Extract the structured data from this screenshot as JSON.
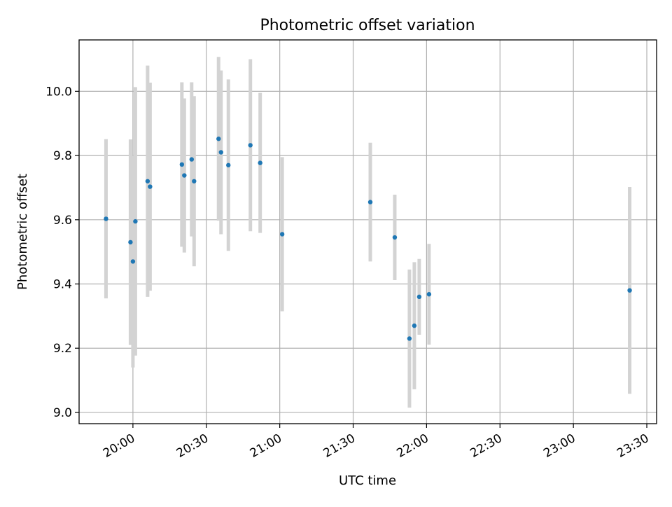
{
  "chart_data": {
    "type": "scatter",
    "title": "Photometric offset variation",
    "xlabel": "UTC time",
    "ylabel": "Photometric offset",
    "x_is_time": true,
    "xlim": [
      "19:38",
      "23:34"
    ],
    "ylim": [
      8.965,
      10.16
    ],
    "x_ticks": [
      "20:00",
      "20:30",
      "21:00",
      "21:30",
      "22:00",
      "22:30",
      "23:00",
      "23:30"
    ],
    "y_ticks": [
      9.0,
      9.2,
      9.4,
      9.6,
      9.8,
      10.0
    ],
    "y_tick_labels": [
      "9.0",
      "9.2",
      "9.4",
      "9.6",
      "9.8",
      "10.0"
    ],
    "grid": true,
    "errorbar_color": "#d3d3d3",
    "point_color": "#1f77b4",
    "series": [
      {
        "points": [
          {
            "x": "19:49",
            "y": 9.603,
            "err": 0.248
          },
          {
            "x": "19:59",
            "y": 9.53,
            "err": 0.32
          },
          {
            "x": "20:00",
            "y": 9.47,
            "err": 0.33
          },
          {
            "x": "20:01",
            "y": 9.595,
            "err": 0.418
          },
          {
            "x": "20:06",
            "y": 9.72,
            "err": 0.36
          },
          {
            "x": "20:07",
            "y": 9.703,
            "err": 0.324
          },
          {
            "x": "20:20",
            "y": 9.772,
            "err": 0.256
          },
          {
            "x": "20:21",
            "y": 9.738,
            "err": 0.24
          },
          {
            "x": "20:24",
            "y": 9.788,
            "err": 0.24
          },
          {
            "x": "20:25",
            "y": 9.72,
            "err": 0.265
          },
          {
            "x": "20:35",
            "y": 9.852,
            "err": 0.255
          },
          {
            "x": "20:36",
            "y": 9.81,
            "err": 0.255
          },
          {
            "x": "20:39",
            "y": 9.77,
            "err": 0.267
          },
          {
            "x": "20:48",
            "y": 9.832,
            "err": 0.268
          },
          {
            "x": "20:52",
            "y": 9.777,
            "err": 0.218
          },
          {
            "x": "21:01",
            "y": 9.555,
            "err": 0.24
          },
          {
            "x": "21:37",
            "y": 9.655,
            "err": 0.185
          },
          {
            "x": "21:47",
            "y": 9.545,
            "err": 0.133
          },
          {
            "x": "21:53",
            "y": 9.23,
            "err": 0.215
          },
          {
            "x": "21:55",
            "y": 9.27,
            "err": 0.198
          },
          {
            "x": "21:57",
            "y": 9.36,
            "err": 0.118
          },
          {
            "x": "22:01",
            "y": 9.368,
            "err": 0.157
          },
          {
            "x": "23:23",
            "y": 9.38,
            "err": 0.322
          }
        ]
      }
    ]
  }
}
